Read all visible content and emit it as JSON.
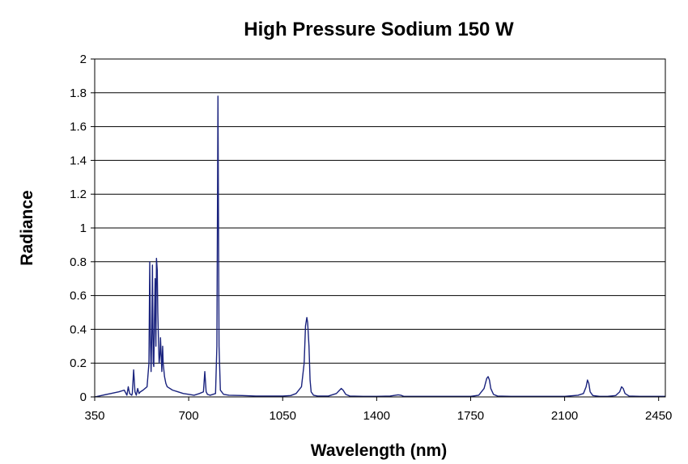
{
  "chart_data": {
    "type": "line",
    "title": "High Pressure Sodium 150 W",
    "xlabel": "Wavelength (nm)",
    "ylabel": "Radiance",
    "xlim": [
      350,
      2475
    ],
    "ylim": [
      0,
      2
    ],
    "x_ticks": [
      350,
      700,
      1050,
      1400,
      1750,
      2100,
      2450
    ],
    "y_ticks": [
      0,
      0.2,
      0.4,
      0.6,
      0.8,
      1,
      1.2,
      1.4,
      1.6,
      1.8,
      2
    ],
    "x_tick_labels": [
      "350",
      "700",
      "1050",
      "1400",
      "1750",
      "2100",
      "2450"
    ],
    "y_tick_labels": [
      "0",
      "0.2",
      "0.4",
      "0.6",
      "0.8",
      "1",
      "1.2",
      "1.4",
      "1.6",
      "1.8",
      "2"
    ],
    "grid": "horizontal",
    "series_color": "#1a237e",
    "series": [
      {
        "x": [
          350,
          380,
          410,
          440,
          460,
          470,
          475,
          480,
          488,
          490,
          495,
          500,
          505,
          510,
          515,
          520,
          530,
          545,
          552,
          555,
          558,
          560,
          563,
          565,
          568,
          570,
          573,
          575,
          578,
          580,
          583,
          585,
          588,
          590,
          593,
          595,
          600,
          603,
          605,
          610,
          615,
          620,
          640,
          660,
          680,
          700,
          720,
          740,
          755,
          760,
          765,
          770,
          780,
          800,
          805,
          809,
          813,
          818,
          830,
          850,
          900,
          950,
          1000,
          1050,
          1080,
          1100,
          1120,
          1130,
          1135,
          1140,
          1143,
          1148,
          1152,
          1156,
          1165,
          1180,
          1220,
          1250,
          1262,
          1268,
          1275,
          1285,
          1300,
          1350,
          1400,
          1450,
          1470,
          1480,
          1490,
          1500,
          1550,
          1600,
          1650,
          1700,
          1750,
          1780,
          1800,
          1810,
          1815,
          1820,
          1825,
          1835,
          1850,
          1900,
          1950,
          2000,
          2050,
          2100,
          2150,
          2170,
          2180,
          2185,
          2190,
          2195,
          2205,
          2230,
          2260,
          2290,
          2305,
          2312,
          2318,
          2325,
          2340,
          2380,
          2420,
          2475
        ],
        "y": [
          0,
          0.01,
          0.02,
          0.03,
          0.04,
          0.01,
          0.06,
          0.02,
          0.01,
          0.02,
          0.16,
          0.03,
          0.01,
          0.05,
          0.02,
          0.03,
          0.04,
          0.06,
          0.2,
          0.8,
          0.3,
          0.15,
          0.4,
          0.78,
          0.2,
          0.18,
          0.5,
          0.7,
          0.3,
          0.82,
          0.75,
          0.5,
          0.3,
          0.2,
          0.25,
          0.35,
          0.15,
          0.3,
          0.2,
          0.12,
          0.08,
          0.06,
          0.04,
          0.03,
          0.02,
          0.015,
          0.01,
          0.02,
          0.03,
          0.15,
          0.03,
          0.015,
          0.01,
          0.02,
          0.3,
          1.78,
          0.3,
          0.04,
          0.015,
          0.01,
          0.008,
          0.005,
          0.005,
          0.005,
          0.008,
          0.02,
          0.06,
          0.2,
          0.42,
          0.47,
          0.44,
          0.3,
          0.1,
          0.03,
          0.01,
          0.005,
          0.005,
          0.02,
          0.04,
          0.05,
          0.04,
          0.015,
          0.005,
          0.003,
          0.003,
          0.005,
          0.01,
          0.012,
          0.01,
          0.004,
          0.003,
          0.003,
          0.003,
          0.003,
          0.003,
          0.01,
          0.05,
          0.11,
          0.12,
          0.1,
          0.05,
          0.015,
          0.005,
          0.003,
          0.003,
          0.003,
          0.003,
          0.003,
          0.01,
          0.02,
          0.06,
          0.1,
          0.08,
          0.03,
          0.008,
          0.003,
          0.003,
          0.008,
          0.03,
          0.06,
          0.05,
          0.02,
          0.005,
          0.003,
          0.003,
          0.003
        ]
      }
    ]
  }
}
